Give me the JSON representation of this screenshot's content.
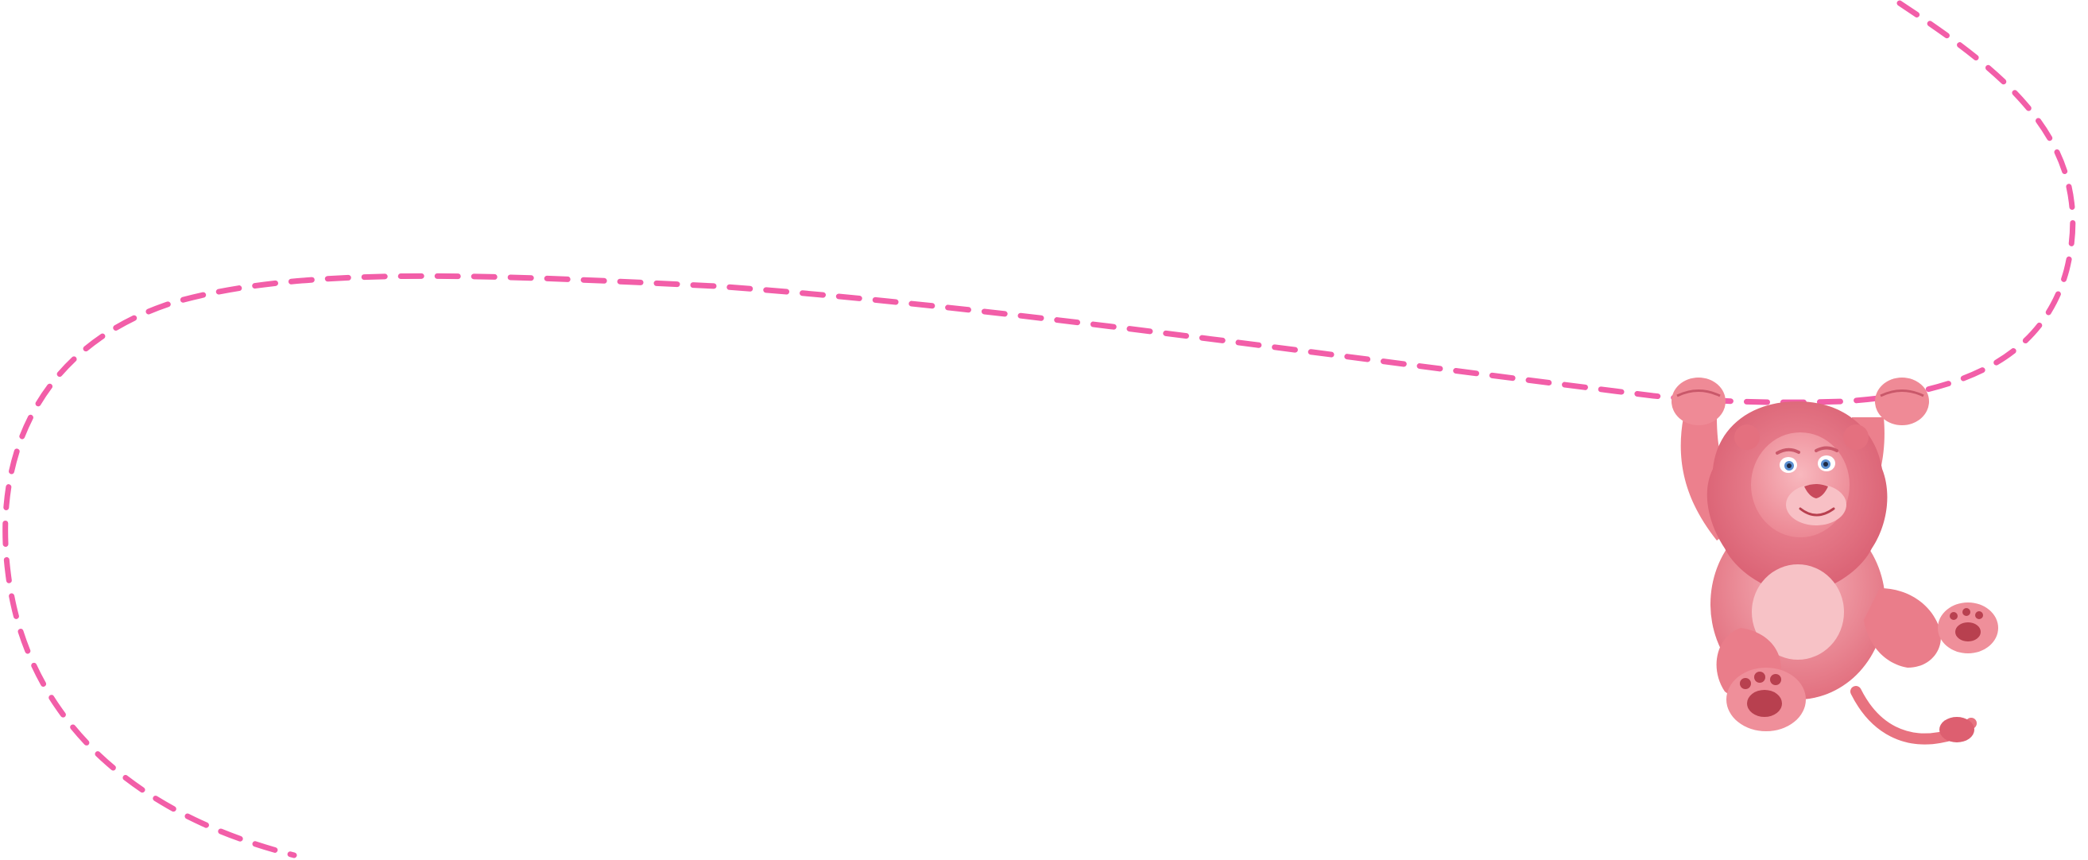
{
  "colors": {
    "background": "#ffffff",
    "rope": "#f25ea8",
    "fur": "#ef7f8e",
    "fur_light": "#f6b2b9",
    "fur_dark": "#d95d6f",
    "mane": "#e8697c",
    "pad": "#b8404f",
    "eye_iris": "#5b8fd0",
    "eye_white": "#ffffff",
    "nose": "#c94a5c"
  },
  "illustration": {
    "rope_style": "dashed",
    "character": "pink-lion",
    "pose": "hanging-from-rope"
  }
}
